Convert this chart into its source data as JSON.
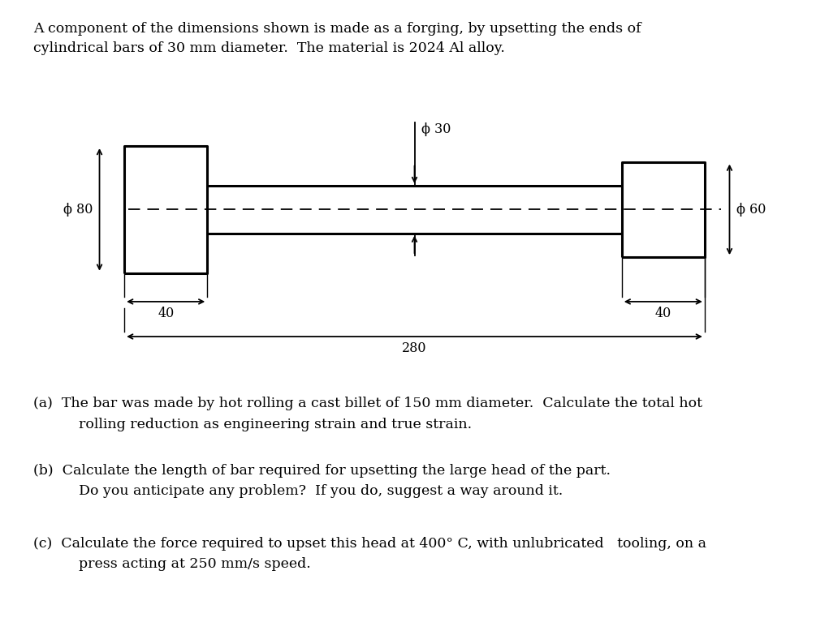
{
  "bg_color": "#ffffff",
  "line_color": "#000000",
  "title_line1": "A component of the dimensions shown is made as a forging, by upsetting the ends of",
  "title_line2": "cylindrical bars of 30 mm diameter.  The material is 2024 Al alloy.",
  "qa_line1": "(a)  The bar was made by hot rolling a cast billet of 150 mm diameter.  Calculate the total hot",
  "qa_line2": "rolling reduction as engineering strain and true strain.",
  "qb_line1": "(b)  Calculate the length of bar required for upsetting the large head of the part.",
  "qb_line2": "Do you anticipate any problem?  If you do, suggest a way around it.",
  "qc_line1": "(c)  Calculate the force required to upset this head at 400° C, with unlubricated   tooling, on a",
  "qc_line2": "press acting at 250 mm/s speed.",
  "font_size": 12.5
}
